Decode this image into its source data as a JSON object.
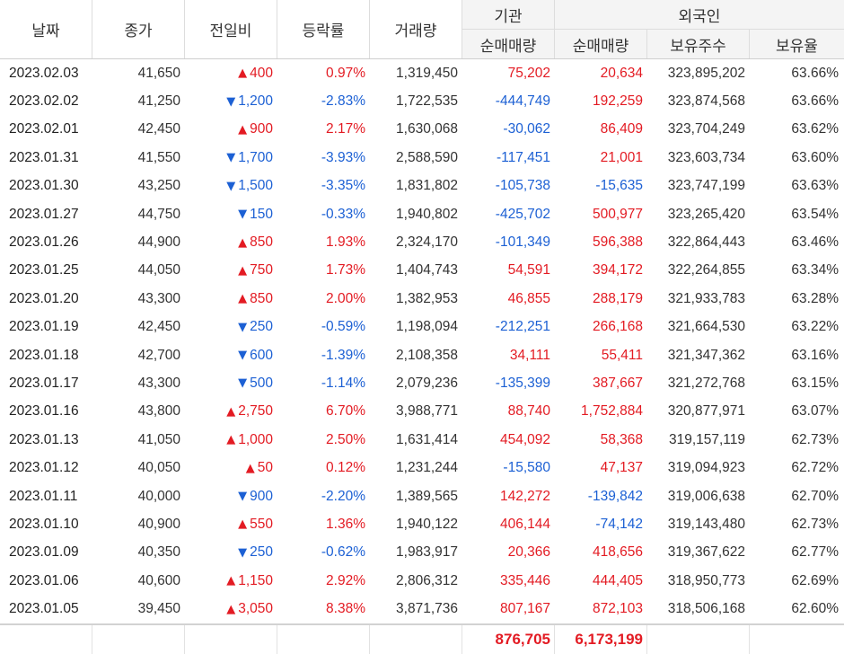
{
  "colors": {
    "up": "#e31b23",
    "down": "#1c60d4",
    "text": "#333333",
    "header_bg": "#f4f4f4"
  },
  "header": {
    "date": "날짜",
    "close": "종가",
    "change": "전일비",
    "rate": "등락률",
    "volume": "거래량",
    "institution": "기관",
    "foreigner": "외국인",
    "inst_net": "순매매량",
    "frgn_net": "순매매량",
    "frgn_shares": "보유주수",
    "frgn_ratio": "보유율"
  },
  "rows": [
    {
      "date": "2023.02.03",
      "close": "41,650",
      "arrow": "▲",
      "change": "400",
      "rate": "0.97%",
      "volume": "1,319,450",
      "inst_net": "75,202",
      "frgn_net": "20,634",
      "frgn_shares": "323,895,202",
      "frgn_ratio": "63.66%"
    },
    {
      "date": "2023.02.02",
      "close": "41,250",
      "arrow": "▼",
      "change": "1,200",
      "rate": "-2.83%",
      "volume": "1,722,535",
      "inst_net": "-444,749",
      "frgn_net": "192,259",
      "frgn_shares": "323,874,568",
      "frgn_ratio": "63.66%"
    },
    {
      "date": "2023.02.01",
      "close": "42,450",
      "arrow": "▲",
      "change": "900",
      "rate": "2.17%",
      "volume": "1,630,068",
      "inst_net": "-30,062",
      "frgn_net": "86,409",
      "frgn_shares": "323,704,249",
      "frgn_ratio": "63.62%"
    },
    {
      "date": "2023.01.31",
      "close": "41,550",
      "arrow": "▼",
      "change": "1,700",
      "rate": "-3.93%",
      "volume": "2,588,590",
      "inst_net": "-117,451",
      "frgn_net": "21,001",
      "frgn_shares": "323,603,734",
      "frgn_ratio": "63.60%"
    },
    {
      "date": "2023.01.30",
      "close": "43,250",
      "arrow": "▼",
      "change": "1,500",
      "rate": "-3.35%",
      "volume": "1,831,802",
      "inst_net": "-105,738",
      "frgn_net": "-15,635",
      "frgn_shares": "323,747,199",
      "frgn_ratio": "63.63%"
    },
    {
      "date": "2023.01.27",
      "close": "44,750",
      "arrow": "▼",
      "change": "150",
      "rate": "-0.33%",
      "volume": "1,940,802",
      "inst_net": "-425,702",
      "frgn_net": "500,977",
      "frgn_shares": "323,265,420",
      "frgn_ratio": "63.54%"
    },
    {
      "date": "2023.01.26",
      "close": "44,900",
      "arrow": "▲",
      "change": "850",
      "rate": "1.93%",
      "volume": "2,324,170",
      "inst_net": "-101,349",
      "frgn_net": "596,388",
      "frgn_shares": "322,864,443",
      "frgn_ratio": "63.46%"
    },
    {
      "date": "2023.01.25",
      "close": "44,050",
      "arrow": "▲",
      "change": "750",
      "rate": "1.73%",
      "volume": "1,404,743",
      "inst_net": "54,591",
      "frgn_net": "394,172",
      "frgn_shares": "322,264,855",
      "frgn_ratio": "63.34%"
    },
    {
      "date": "2023.01.20",
      "close": "43,300",
      "arrow": "▲",
      "change": "850",
      "rate": "2.00%",
      "volume": "1,382,953",
      "inst_net": "46,855",
      "frgn_net": "288,179",
      "frgn_shares": "321,933,783",
      "frgn_ratio": "63.28%"
    },
    {
      "date": "2023.01.19",
      "close": "42,450",
      "arrow": "▼",
      "change": "250",
      "rate": "-0.59%",
      "volume": "1,198,094",
      "inst_net": "-212,251",
      "frgn_net": "266,168",
      "frgn_shares": "321,664,530",
      "frgn_ratio": "63.22%"
    },
    {
      "date": "2023.01.18",
      "close": "42,700",
      "arrow": "▼",
      "change": "600",
      "rate": "-1.39%",
      "volume": "2,108,358",
      "inst_net": "34,111",
      "frgn_net": "55,411",
      "frgn_shares": "321,347,362",
      "frgn_ratio": "63.16%"
    },
    {
      "date": "2023.01.17",
      "close": "43,300",
      "arrow": "▼",
      "change": "500",
      "rate": "-1.14%",
      "volume": "2,079,236",
      "inst_net": "-135,399",
      "frgn_net": "387,667",
      "frgn_shares": "321,272,768",
      "frgn_ratio": "63.15%"
    },
    {
      "date": "2023.01.16",
      "close": "43,800",
      "arrow": "▲",
      "change": "2,750",
      "rate": "6.70%",
      "volume": "3,988,771",
      "inst_net": "88,740",
      "frgn_net": "1,752,884",
      "frgn_shares": "320,877,971",
      "frgn_ratio": "63.07%"
    },
    {
      "date": "2023.01.13",
      "close": "41,050",
      "arrow": "▲",
      "change": "1,000",
      "rate": "2.50%",
      "volume": "1,631,414",
      "inst_net": "454,092",
      "frgn_net": "58,368",
      "frgn_shares": "319,157,119",
      "frgn_ratio": "62.73%"
    },
    {
      "date": "2023.01.12",
      "close": "40,050",
      "arrow": "▲",
      "change": "50",
      "rate": "0.12%",
      "volume": "1,231,244",
      "inst_net": "-15,580",
      "frgn_net": "47,137",
      "frgn_shares": "319,094,923",
      "frgn_ratio": "62.72%"
    },
    {
      "date": "2023.01.11",
      "close": "40,000",
      "arrow": "▼",
      "change": "900",
      "rate": "-2.20%",
      "volume": "1,389,565",
      "inst_net": "142,272",
      "frgn_net": "-139,842",
      "frgn_shares": "319,006,638",
      "frgn_ratio": "62.70%"
    },
    {
      "date": "2023.01.10",
      "close": "40,900",
      "arrow": "▲",
      "change": "550",
      "rate": "1.36%",
      "volume": "1,940,122",
      "inst_net": "406,144",
      "frgn_net": "-74,142",
      "frgn_shares": "319,143,480",
      "frgn_ratio": "62.73%"
    },
    {
      "date": "2023.01.09",
      "close": "40,350",
      "arrow": "▼",
      "change": "250",
      "rate": "-0.62%",
      "volume": "1,983,917",
      "inst_net": "20,366",
      "frgn_net": "418,656",
      "frgn_shares": "319,367,622",
      "frgn_ratio": "62.77%"
    },
    {
      "date": "2023.01.06",
      "close": "40,600",
      "arrow": "▲",
      "change": "1,150",
      "rate": "2.92%",
      "volume": "2,806,312",
      "inst_net": "335,446",
      "frgn_net": "444,405",
      "frgn_shares": "318,950,773",
      "frgn_ratio": "62.69%"
    },
    {
      "date": "2023.01.05",
      "close": "39,450",
      "arrow": "▲",
      "change": "3,050",
      "rate": "8.38%",
      "volume": "3,871,736",
      "inst_net": "807,167",
      "frgn_net": "872,103",
      "frgn_shares": "318,506,168",
      "frgn_ratio": "62.60%"
    }
  ],
  "summary": {
    "inst_net_total": "876,705",
    "frgn_net_total": "6,173,199"
  }
}
